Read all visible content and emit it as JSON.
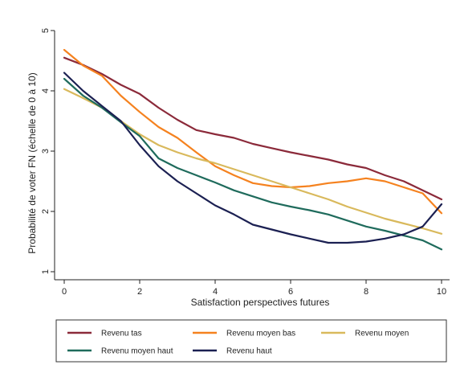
{
  "chart_data": {
    "type": "line",
    "title": "",
    "xlabel": "Satisfaction perspectives futures",
    "ylabel": "Probabilité de voter FN (échelle de 0 à 10)",
    "xlim": [
      0,
      10
    ],
    "ylim": [
      1,
      5
    ],
    "xticks": [
      0,
      2,
      4,
      6,
      8,
      10
    ],
    "yticks": [
      1,
      2,
      3,
      4,
      5
    ],
    "grid": false,
    "legend_position": "bottom",
    "series": [
      {
        "name": "Revenu tas",
        "color": "#8b2a3a",
        "x": [
          0,
          0.5,
          1,
          1.5,
          2,
          2.5,
          3,
          3.5,
          4,
          4.5,
          5,
          5.5,
          6,
          6.5,
          7,
          7.5,
          8,
          8.5,
          9,
          9.5,
          10
        ],
        "y": [
          4.55,
          4.43,
          4.28,
          4.1,
          3.95,
          3.72,
          3.52,
          3.35,
          3.28,
          3.22,
          3.12,
          3.05,
          2.98,
          2.92,
          2.86,
          2.78,
          2.72,
          2.6,
          2.5,
          2.35,
          2.2
        ]
      },
      {
        "name": "Revenu moyen bas",
        "color": "#f5821f",
        "x": [
          0,
          0.5,
          1,
          1.5,
          2,
          2.5,
          3,
          3.5,
          4,
          4.5,
          5,
          5.5,
          6,
          6.5,
          7,
          7.5,
          8,
          8.5,
          9,
          9.5,
          10
        ],
        "y": [
          4.68,
          4.42,
          4.25,
          3.92,
          3.65,
          3.4,
          3.22,
          2.98,
          2.75,
          2.6,
          2.47,
          2.42,
          2.4,
          2.42,
          2.47,
          2.5,
          2.55,
          2.5,
          2.4,
          2.3,
          1.97
        ]
      },
      {
        "name": "Revenu moyen",
        "color": "#d9b95c",
        "x": [
          0,
          0.5,
          1,
          1.5,
          2,
          2.5,
          3,
          3.5,
          4,
          4.5,
          5,
          5.5,
          6,
          6.5,
          7,
          7.5,
          8,
          8.5,
          9,
          9.5,
          10
        ],
        "y": [
          4.03,
          3.88,
          3.72,
          3.5,
          3.28,
          3.1,
          2.98,
          2.88,
          2.8,
          2.7,
          2.6,
          2.5,
          2.4,
          2.3,
          2.2,
          2.08,
          1.98,
          1.88,
          1.8,
          1.72,
          1.63
        ]
      },
      {
        "name": "Revenu moyen haut",
        "color": "#1f6b5c",
        "x": [
          0,
          0.5,
          1,
          1.5,
          2,
          2.5,
          3,
          3.5,
          4,
          4.5,
          5,
          5.5,
          6,
          6.5,
          7,
          7.5,
          8,
          8.5,
          9,
          9.5,
          10
        ],
        "y": [
          4.2,
          3.92,
          3.72,
          3.48,
          3.25,
          2.88,
          2.72,
          2.6,
          2.48,
          2.35,
          2.25,
          2.15,
          2.08,
          2.02,
          1.95,
          1.85,
          1.75,
          1.68,
          1.6,
          1.52,
          1.37
        ]
      },
      {
        "name": "Revenu haut",
        "color": "#1b2052",
        "x": [
          0,
          0.5,
          1,
          1.5,
          2,
          2.5,
          3,
          3.5,
          4,
          4.5,
          5,
          5.5,
          6,
          6.5,
          7,
          7.5,
          8,
          8.5,
          9,
          9.5,
          10
        ],
        "y": [
          4.3,
          4.0,
          3.75,
          3.5,
          3.1,
          2.75,
          2.5,
          2.3,
          2.1,
          1.95,
          1.78,
          1.7,
          1.62,
          1.55,
          1.48,
          1.48,
          1.5,
          1.55,
          1.62,
          1.75,
          2.12
        ]
      }
    ]
  }
}
